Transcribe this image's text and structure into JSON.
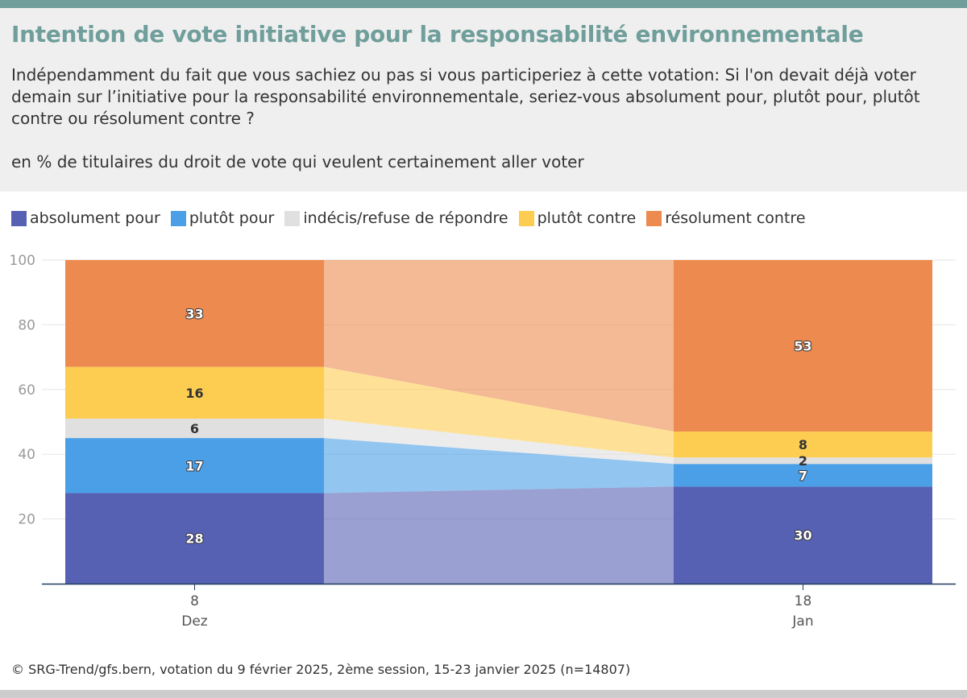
{
  "title": "Intention de vote initiative pour la responsabilité environnementale",
  "subtitle": "Indépendamment du fait que vous sachiez ou pas si vous participeriez à cette votation: Si l'on devait déjà voter demain sur l’initiative pour la responsabilité environnementale, seriez-vous absolument pour, plutôt pour, plutôt contre ou résolument contre ?",
  "unit_note": "en % de titulaires du droit de vote qui veulent certainement aller voter",
  "source": "© SRG-Trend/gfs.bern, votation du 9 février 2025, 2ème session, 15-23 janvier 2025 (n=14807)",
  "colors": {
    "accent": "#6f9e9b",
    "absolument_pour": "#5661b3",
    "plutot_pour": "#4a9fe6",
    "indecis": "#e0e0e0",
    "plutot_contre": "#fdcd52",
    "resolument_contre": "#ed8a4f"
  },
  "chart_data": {
    "type": "bar",
    "stacked": true,
    "title": "Intention de vote initiative pour la responsabilité environnementale",
    "xlabel": "",
    "ylabel": "",
    "ylim": [
      0,
      100
    ],
    "yticks": [
      20,
      40,
      60,
      80,
      100
    ],
    "categories": [
      {
        "day": "8",
        "month": "Dez"
      },
      {
        "day": "18",
        "month": "Jan"
      }
    ],
    "series": [
      {
        "name": "absolument pour",
        "color": "#5661b3",
        "label_color": "#ffffff",
        "values": [
          28,
          30
        ]
      },
      {
        "name": "plutôt pour",
        "color": "#4a9fe6",
        "label_color": "#ffffff",
        "values": [
          17,
          7
        ]
      },
      {
        "name": "indécis/refuse de répondre",
        "color": "#e0e0e0",
        "label_color": "#333333",
        "values": [
          6,
          2
        ]
      },
      {
        "name": "plutôt contre",
        "color": "#fdcd52",
        "label_color": "#333333",
        "values": [
          16,
          8
        ]
      },
      {
        "name": "résolument contre",
        "color": "#ed8a4f",
        "label_color": "#ffffff",
        "values": [
          33,
          53
        ]
      }
    ],
    "legend_position": "top-left",
    "grid": true
  }
}
